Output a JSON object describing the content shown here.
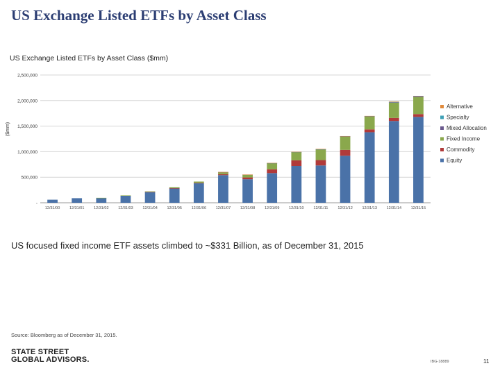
{
  "page": {
    "title": "US Exchange Listed ETFs by Asset Class",
    "caption": "US focused fixed income ETF assets climbed to ~$331 Billion, as of December 31, 2015",
    "source": "Source: Bloomberg as of December 31, 2015.",
    "logo_line1": "STATE STREET",
    "logo_line2": "GLOBAL ADVISORS.",
    "code": "IBG-18889",
    "page_number": "11"
  },
  "chart_data": {
    "type": "bar",
    "stacked": true,
    "title": "US Exchange Listed ETFs by Asset Class ($mm)",
    "ylabel": "($mm)",
    "xlabel": "",
    "ylim": [
      0,
      2500000
    ],
    "yticks": [
      "-",
      "500,000",
      "1,000,000",
      "1,500,000",
      "2,000,000",
      "2,500,000"
    ],
    "ytick_values": [
      0,
      500000,
      1000000,
      1500000,
      2000000,
      2500000
    ],
    "grid": true,
    "legend_position": "right",
    "categories": [
      "12/31/00",
      "12/31/01",
      "12/31/02",
      "12/31/03",
      "12/31/04",
      "12/31/05",
      "12/31/06",
      "12/31/07",
      "12/31/08",
      "12/31/09",
      "12/31/10",
      "12/31/11",
      "12/31/12",
      "12/31/13",
      "12/31/14",
      "12/31/15"
    ],
    "series": [
      {
        "name": "Equity",
        "color": "#4a72a8",
        "values": [
          60000,
          90000,
          95000,
          140000,
          210000,
          280000,
          380000,
          540000,
          460000,
          580000,
          720000,
          730000,
          920000,
          1380000,
          1600000,
          1680000
        ]
      },
      {
        "name": "Commodity",
        "color": "#b03a3a",
        "values": [
          0,
          0,
          0,
          0,
          3000,
          5000,
          10000,
          20000,
          35000,
          75000,
          110000,
          105000,
          115000,
          55000,
          60000,
          55000
        ]
      },
      {
        "name": "Fixed Income",
        "color": "#8aa84c",
        "values": [
          0,
          0,
          2000,
          4000,
          10000,
          20000,
          25000,
          40000,
          55000,
          120000,
          160000,
          210000,
          260000,
          250000,
          300000,
          331000
        ]
      },
      {
        "name": "Mixed Allocation",
        "color": "#6b5a8e",
        "values": [
          0,
          0,
          0,
          0,
          0,
          0,
          0,
          1000,
          1000,
          2000,
          3000,
          4000,
          5000,
          8000,
          12000,
          15000
        ]
      },
      {
        "name": "Specialty",
        "color": "#3fa0b6",
        "values": [
          0,
          0,
          0,
          0,
          0,
          0,
          0,
          0,
          0,
          1000,
          1000,
          2000,
          2000,
          3000,
          4000,
          5000
        ]
      },
      {
        "name": "Alternative",
        "color": "#e08a3c",
        "values": [
          0,
          0,
          0,
          0,
          0,
          0,
          0,
          1000,
          1000,
          2000,
          3000,
          3000,
          3000,
          4000,
          5000,
          6000
        ]
      }
    ],
    "legend_order": [
      "Alternative",
      "Specialty",
      "Mixed Allocation",
      "Fixed Income",
      "Commodity",
      "Equity"
    ]
  }
}
